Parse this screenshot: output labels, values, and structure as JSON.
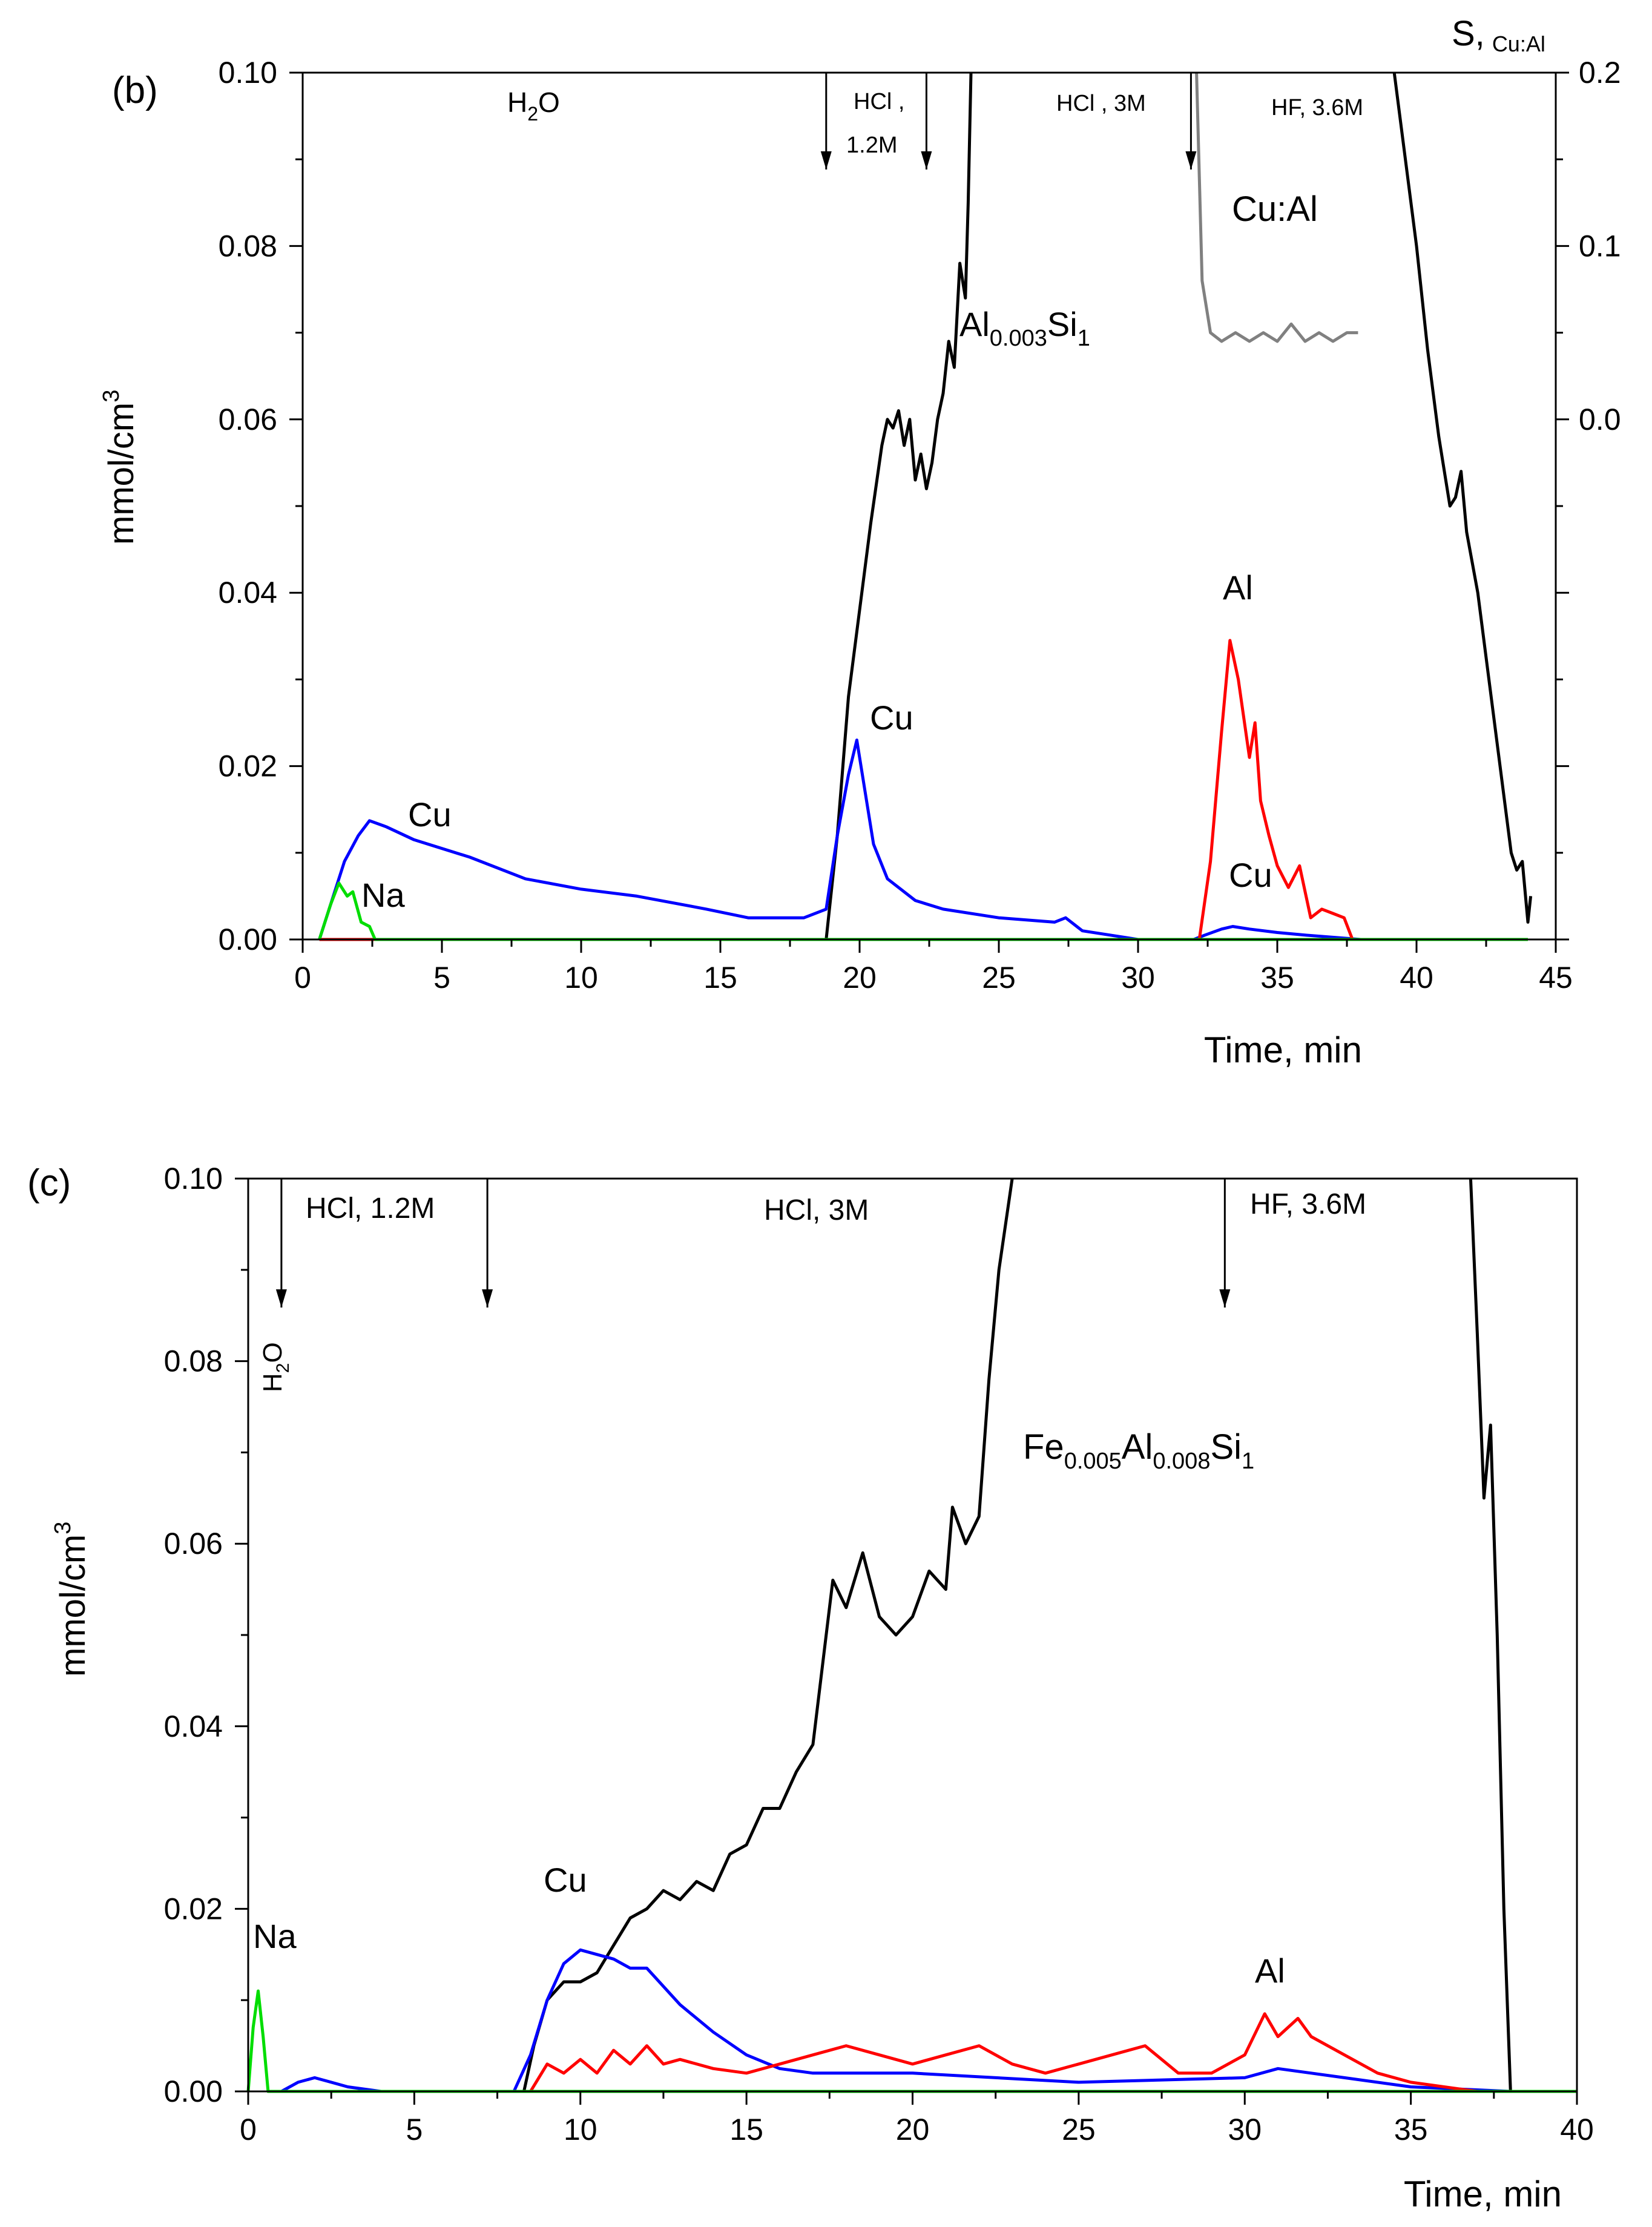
{
  "chart_data": [
    {
      "panel_label": "(b)",
      "type": "line",
      "xlabel": "Time, min",
      "ylabel": "mmol/cm",
      "ylabel_sup": "3",
      "xlim": [
        0,
        45
      ],
      "ylim": [
        0,
        0.1
      ],
      "x_ticks": [
        0,
        5,
        10,
        15,
        20,
        25,
        30,
        35,
        40,
        45
      ],
      "x_tick_labels": [
        "0",
        "5",
        "10",
        "15",
        "20",
        "25",
        "30",
        "35",
        "40",
        "45"
      ],
      "y_ticks": [
        0,
        0.02,
        0.04,
        0.06,
        0.08,
        0.1
      ],
      "y_tick_labels": [
        "0.00",
        "0.02",
        "0.04",
        "0.06",
        "0.08",
        "0.10"
      ],
      "y2": {
        "label": "S,",
        "label_sub": "Cu:Al",
        "lim": [
          -0.3,
          0.2
        ],
        "ticks": [
          0.0,
          0.1,
          0.2
        ],
        "tick_labels": [
          "0.0",
          "0.1",
          "0.2"
        ]
      },
      "annotations": {
        "h2o": {
          "main": "H",
          "sub": "2",
          "tail": "O"
        },
        "hcl12_a": "HCl ,",
        "hcl12_b": "1.2M",
        "hcl3": "HCl , 3M",
        "hf": "HF, 3.6M",
        "al_si": {
          "a": "Al",
          "sub1": "0.003",
          "b": "Si",
          "sub2": "1"
        },
        "cu_left": "Cu",
        "na": "Na",
        "cu_mid": "Cu",
        "al": "Al",
        "cu_right": "Cu",
        "cual": "Cu:Al"
      },
      "arrows_x": [
        18.8,
        22.4,
        31.9
      ],
      "series": [
        {
          "name": "Si (Al0.003Si1)",
          "color": "#000000",
          "axis": "y",
          "x": [
            18.8,
            19.2,
            19.6,
            20.0,
            20.4,
            20.8,
            21.0,
            21.2,
            21.4,
            21.6,
            21.8,
            22.0,
            22.2,
            22.4,
            22.6,
            22.8,
            23.0,
            23.2,
            23.4,
            23.6,
            23.8,
            23.9,
            24.0
          ],
          "y": [
            0.0,
            0.012,
            0.028,
            0.038,
            0.048,
            0.057,
            0.06,
            0.059,
            0.061,
            0.057,
            0.06,
            0.053,
            0.056,
            0.052,
            0.055,
            0.06,
            0.063,
            0.069,
            0.066,
            0.078,
            0.074,
            0.085,
            0.1
          ]
        },
        {
          "name": "Si (HF)",
          "color": "#000000",
          "axis": "y",
          "x": [
            39.2,
            39.6,
            40.0,
            40.4,
            40.8,
            41.2,
            41.4,
            41.6,
            41.8,
            42.2,
            42.6,
            43.0,
            43.4,
            43.6,
            43.8,
            44.0,
            44.1
          ],
          "y": [
            0.1,
            0.09,
            0.08,
            0.068,
            0.058,
            0.05,
            0.051,
            0.054,
            0.047,
            0.04,
            0.03,
            0.02,
            0.01,
            0.008,
            0.009,
            0.002,
            0.005
          ]
        },
        {
          "name": "Cu",
          "color": "#0000ff",
          "axis": "y",
          "x": [
            0.6,
            1.0,
            1.5,
            2.0,
            2.4,
            3.0,
            4.0,
            6.0,
            8.0,
            10.0,
            12.0,
            14.0,
            14.5,
            16.0,
            18.0,
            18.8,
            19.2,
            19.6,
            19.9,
            20.2,
            20.5,
            21.0,
            22.0,
            23.0,
            25.0,
            27.0,
            27.4,
            28.0,
            29.0,
            30.0,
            32.0,
            32.4,
            33.0,
            33.4,
            34.0,
            35.0,
            36.0,
            38.0,
            44.0
          ],
          "y": [
            0.0,
            0.004,
            0.009,
            0.012,
            0.0137,
            0.013,
            0.0115,
            0.0095,
            0.007,
            0.0058,
            0.005,
            0.0038,
            0.0035,
            0.0025,
            0.0025,
            0.0035,
            0.012,
            0.019,
            0.023,
            0.017,
            0.011,
            0.007,
            0.0045,
            0.0035,
            0.0025,
            0.002,
            0.0025,
            0.001,
            0.0005,
            0.0,
            0.0,
            0.0005,
            0.0012,
            0.0015,
            0.0012,
            0.0008,
            0.0005,
            0.0,
            0.0
          ]
        },
        {
          "name": "Al",
          "color": "#ff0000",
          "axis": "y",
          "x": [
            0.6,
            32.2,
            32.6,
            33.0,
            33.3,
            33.6,
            34.0,
            34.2,
            34.4,
            34.7,
            35.0,
            35.4,
            35.8,
            36.2,
            36.6,
            37.0,
            37.4,
            37.7
          ],
          "y": [
            0.0,
            0.0,
            0.009,
            0.024,
            0.0345,
            0.03,
            0.021,
            0.025,
            0.016,
            0.012,
            0.0085,
            0.006,
            0.0085,
            0.0025,
            0.0035,
            0.003,
            0.0025,
            0.0
          ]
        },
        {
          "name": "Na",
          "color": "#00dd00",
          "axis": "y",
          "x": [
            0.6,
            1.0,
            1.3,
            1.6,
            1.8,
            2.1,
            2.4,
            2.6,
            2.8,
            44.0
          ],
          "y": [
            0.0,
            0.004,
            0.0065,
            0.005,
            0.0055,
            0.002,
            0.0015,
            0.0,
            0.0,
            0.0
          ]
        },
        {
          "name": "Cu:Al",
          "color": "#808080",
          "axis": "y2",
          "x": [
            32.1,
            32.3,
            32.6,
            33.0,
            33.5,
            34.0,
            34.5,
            35.0,
            35.5,
            36.0,
            36.5,
            37.0,
            37.5,
            37.9
          ],
          "y": [
            0.2,
            0.08,
            0.05,
            0.045,
            0.05,
            0.045,
            0.05,
            0.045,
            0.055,
            0.045,
            0.05,
            0.045,
            0.05,
            0.05
          ]
        }
      ]
    },
    {
      "panel_label": "(c)",
      "type": "line",
      "xlabel": "Time, min",
      "ylabel": "mmol/cm",
      "ylabel_sup": "3",
      "xlim": [
        0,
        40
      ],
      "ylim": [
        0,
        0.1
      ],
      "x_ticks": [
        0,
        5,
        10,
        15,
        20,
        25,
        30,
        35,
        40
      ],
      "x_tick_labels": [
        "0",
        "5",
        "10",
        "15",
        "20",
        "25",
        "30",
        "35",
        "40"
      ],
      "y_ticks": [
        0,
        0.02,
        0.04,
        0.06,
        0.08,
        0.1
      ],
      "y_tick_labels": [
        "0.00",
        "0.02",
        "0.04",
        "0.06",
        "0.08",
        "0.10"
      ],
      "annotations": {
        "h2o": {
          "main": "H",
          "sub": "2",
          "tail": "O"
        },
        "hcl12": "HCl, 1.2M",
        "hcl3": "HCl, 3M",
        "hf": "HF, 3.6M",
        "fe_al_si": {
          "a": "Fe",
          "sub1": "0.005",
          "b": "Al",
          "sub2": "0.008",
          "c": "Si",
          "sub3": "1"
        },
        "na": "Na",
        "cu": "Cu",
        "al": "Al"
      },
      "arrows_x": [
        1.0,
        7.2,
        29.4
      ],
      "series": [
        {
          "name": "Si (Fe0.005Al0.008Si1)",
          "color": "#000000",
          "x": [
            8.3,
            8.6,
            9.0,
            9.5,
            10.0,
            10.5,
            11.0,
            11.5,
            12.0,
            12.5,
            13.0,
            13.5,
            14.0,
            14.5,
            15.0,
            15.5,
            16.0,
            16.5,
            17.0,
            17.4,
            17.6,
            18.0,
            18.5,
            19.0,
            19.5,
            20.0,
            20.5,
            21.0,
            21.2,
            21.6,
            22.0,
            22.3,
            22.6,
            23.0
          ],
          "y": [
            0.0,
            0.005,
            0.01,
            0.012,
            0.012,
            0.013,
            0.016,
            0.019,
            0.02,
            0.022,
            0.021,
            0.023,
            0.022,
            0.026,
            0.027,
            0.031,
            0.031,
            0.035,
            0.038,
            0.05,
            0.056,
            0.053,
            0.059,
            0.052,
            0.05,
            0.052,
            0.057,
            0.055,
            0.064,
            0.06,
            0.063,
            0.078,
            0.09,
            0.1
          ]
        },
        {
          "name": "Si (HF)",
          "color": "#000000",
          "x": [
            36.8,
            37.0,
            37.2,
            37.4,
            37.6,
            37.8,
            38.0
          ],
          "y": [
            0.1,
            0.083,
            0.065,
            0.073,
            0.05,
            0.02,
            0.0
          ]
        },
        {
          "name": "Cu",
          "color": "#0000ff",
          "x": [
            1.0,
            1.5,
            2.0,
            2.5,
            3.0,
            4.0,
            6.0,
            8.0,
            8.5,
            9.0,
            9.5,
            10.0,
            10.5,
            11.0,
            11.5,
            12.0,
            13.0,
            14.0,
            15.0,
            16.0,
            17.0,
            20.0,
            25.0,
            30.0,
            31.0,
            32.0,
            33.0,
            35.0,
            38.0
          ],
          "y": [
            0.0,
            0.001,
            0.0015,
            0.001,
            0.0005,
            0.0,
            0.0,
            0.0,
            0.004,
            0.01,
            0.014,
            0.0155,
            0.015,
            0.0145,
            0.0135,
            0.0135,
            0.0095,
            0.0065,
            0.004,
            0.0025,
            0.002,
            0.002,
            0.001,
            0.0015,
            0.0025,
            0.002,
            0.0015,
            0.0005,
            0.0
          ]
        },
        {
          "name": "Al",
          "color": "#ff0000",
          "x": [
            8.5,
            9.0,
            9.5,
            10.0,
            10.5,
            11.0,
            11.5,
            12.0,
            12.5,
            13.0,
            14.0,
            15.0,
            16.0,
            17.0,
            18.0,
            19.0,
            20.0,
            21.0,
            22.0,
            23.0,
            24.0,
            25.0,
            26.0,
            27.0,
            28.0,
            29.0,
            30.0,
            30.6,
            31.0,
            31.6,
            32.0,
            33.0,
            34.0,
            35.0,
            37.0
          ],
          "y": [
            0.0,
            0.003,
            0.002,
            0.0035,
            0.002,
            0.0045,
            0.003,
            0.005,
            0.003,
            0.0035,
            0.0025,
            0.002,
            0.003,
            0.004,
            0.005,
            0.004,
            0.003,
            0.004,
            0.005,
            0.003,
            0.002,
            0.003,
            0.004,
            0.005,
            0.002,
            0.002,
            0.004,
            0.0085,
            0.006,
            0.008,
            0.006,
            0.004,
            0.002,
            0.001,
            0.0
          ]
        },
        {
          "name": "Na",
          "color": "#00dd00",
          "x": [
            0.0,
            0.15,
            0.3,
            0.45,
            0.6,
            40.0
          ],
          "y": [
            0.0,
            0.007,
            0.011,
            0.006,
            0.0,
            0.0
          ]
        }
      ]
    }
  ]
}
